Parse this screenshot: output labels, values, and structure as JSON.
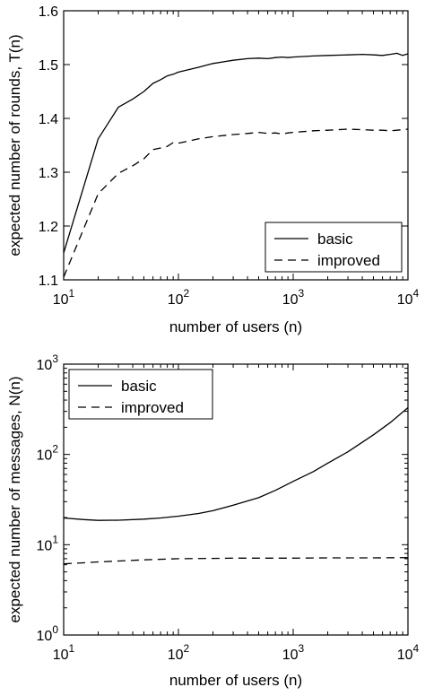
{
  "chart_data": [
    {
      "type": "line",
      "xscale": "log",
      "xlim": [
        10,
        10000
      ],
      "ylim": [
        1.1,
        1.6
      ],
      "xticks": [
        10,
        100,
        1000,
        10000
      ],
      "xtick_labels": [
        {
          "base": "10",
          "exp": "1"
        },
        {
          "base": "10",
          "exp": "2"
        },
        {
          "base": "10",
          "exp": "3"
        },
        {
          "base": "10",
          "exp": "4"
        }
      ],
      "yticks": [
        1.1,
        1.2,
        1.3,
        1.4,
        1.5,
        1.6
      ],
      "ytick_labels": [
        "1.1",
        "1.2",
        "1.3",
        "1.4",
        "1.5",
        "1.6"
      ],
      "xlabel": "number of users (n)",
      "ylabel": "expected number of rounds, T(n)",
      "legend_position": "bottom-right",
      "series": [
        {
          "name": "basic",
          "style": "solid",
          "x": [
            10,
            20,
            30,
            40,
            50,
            60,
            70,
            80,
            90,
            100,
            150,
            200,
            300,
            400,
            500,
            600,
            700,
            800,
            900,
            1000,
            1500,
            2000,
            3000,
            4000,
            5000,
            6000,
            7000,
            8000,
            9000,
            10000
          ],
          "y": [
            1.15,
            1.362,
            1.421,
            1.436,
            1.45,
            1.465,
            1.472,
            1.479,
            1.482,
            1.486,
            1.495,
            1.502,
            1.508,
            1.511,
            1.512,
            1.511,
            1.513,
            1.514,
            1.513,
            1.514,
            1.516,
            1.517,
            1.518,
            1.519,
            1.518,
            1.517,
            1.519,
            1.521,
            1.517,
            1.52
          ]
        },
        {
          "name": "improved",
          "style": "dashed",
          "x": [
            10,
            20,
            30,
            40,
            50,
            60,
            70,
            80,
            90,
            100,
            150,
            200,
            300,
            400,
            500,
            600,
            700,
            800,
            900,
            1000,
            1500,
            2000,
            3000,
            4000,
            5000,
            6000,
            7000,
            8000,
            9000,
            10000
          ],
          "y": [
            1.105,
            1.26,
            1.298,
            1.312,
            1.325,
            1.342,
            1.345,
            1.348,
            1.355,
            1.354,
            1.362,
            1.366,
            1.37,
            1.372,
            1.374,
            1.372,
            1.373,
            1.371,
            1.373,
            1.374,
            1.377,
            1.378,
            1.38,
            1.379,
            1.378,
            1.378,
            1.377,
            1.378,
            1.379,
            1.38
          ]
        }
      ]
    },
    {
      "type": "line",
      "xscale": "log",
      "yscale": "log",
      "xlim": [
        10,
        10000
      ],
      "ylim": [
        1,
        1000
      ],
      "xticks": [
        10,
        100,
        1000,
        10000
      ],
      "xtick_labels": [
        {
          "base": "10",
          "exp": "1"
        },
        {
          "base": "10",
          "exp": "2"
        },
        {
          "base": "10",
          "exp": "3"
        },
        {
          "base": "10",
          "exp": "4"
        }
      ],
      "yticks": [
        1,
        10,
        100,
        1000
      ],
      "ytick_labels": [
        {
          "base": "10",
          "exp": "0"
        },
        {
          "base": "10",
          "exp": "1"
        },
        {
          "base": "10",
          "exp": "2"
        },
        {
          "base": "10",
          "exp": "3"
        }
      ],
      "xlabel": "number of users (n)",
      "ylabel": "expected number of messages, N(n)",
      "legend_position": "top-left",
      "series": [
        {
          "name": "basic",
          "style": "solid",
          "x": [
            10,
            15,
            20,
            30,
            50,
            70,
            100,
            150,
            200,
            300,
            500,
            700,
            1000,
            1500,
            2000,
            3000,
            5000,
            7000,
            10000
          ],
          "y": [
            19.8,
            19.0,
            18.6,
            18.7,
            19.2,
            19.8,
            20.7,
            22.2,
            23.8,
            27.4,
            33.2,
            40.0,
            50.3,
            64.5,
            80.0,
            107,
            165,
            225,
            330
          ]
        },
        {
          "name": "improved",
          "style": "dashed",
          "x": [
            10,
            15,
            20,
            30,
            50,
            100,
            200,
            300,
            500,
            1000,
            2000,
            5000,
            10000
          ],
          "y": [
            6.15,
            6.3,
            6.45,
            6.6,
            6.8,
            7.0,
            7.05,
            7.1,
            7.1,
            7.1,
            7.15,
            7.15,
            7.2
          ]
        }
      ]
    }
  ]
}
